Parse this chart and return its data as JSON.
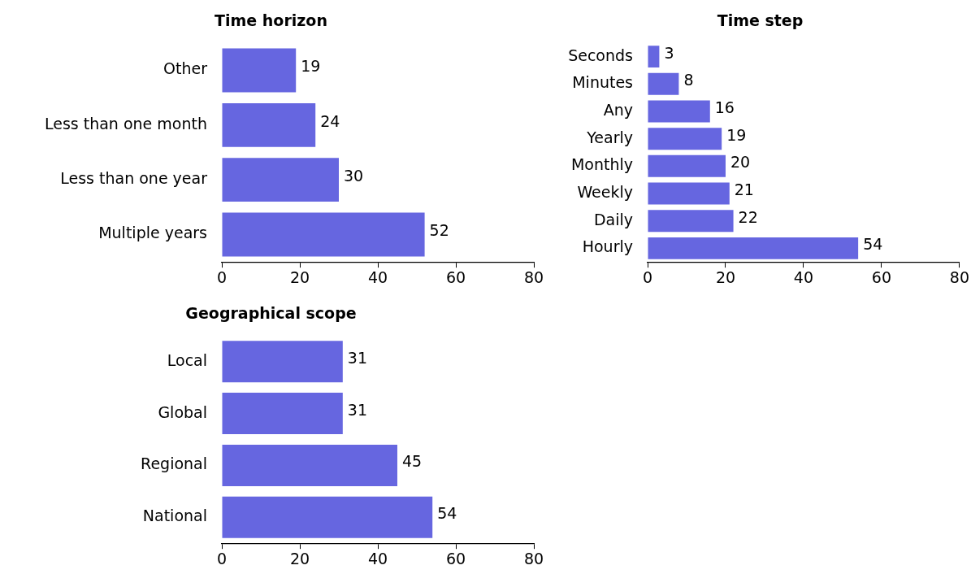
{
  "chart_data": [
    {
      "type": "bar",
      "orientation": "horizontal",
      "title": "Time horizon",
      "categories": [
        "Other",
        "Less than one month",
        "Less than one year",
        "Multiple years"
      ],
      "values": [
        19,
        24,
        30,
        52
      ],
      "color": "#6666e0",
      "xlim": [
        0,
        80
      ],
      "xticks": [
        0,
        20,
        40,
        60,
        80
      ],
      "data_labels": true,
      "grid": false,
      "legend": false
    },
    {
      "type": "bar",
      "orientation": "horizontal",
      "title": "Time step",
      "categories": [
        "Seconds",
        "Minutes",
        "Any",
        "Yearly",
        "Monthly",
        "Weekly",
        "Daily",
        "Hourly"
      ],
      "values": [
        3,
        8,
        16,
        19,
        20,
        21,
        22,
        54
      ],
      "color": "#6666e0",
      "xlim": [
        0,
        80
      ],
      "xticks": [
        0,
        20,
        40,
        60,
        80
      ],
      "data_labels": true,
      "grid": false,
      "legend": false
    },
    {
      "type": "bar",
      "orientation": "horizontal",
      "title": "Geographical scope",
      "categories": [
        "Local",
        "Global",
        "Regional",
        "National"
      ],
      "values": [
        31,
        31,
        45,
        54
      ],
      "color": "#6666e0",
      "xlim": [
        0,
        80
      ],
      "xticks": [
        0,
        20,
        40,
        60,
        80
      ],
      "data_labels": true,
      "grid": false,
      "legend": false
    }
  ]
}
